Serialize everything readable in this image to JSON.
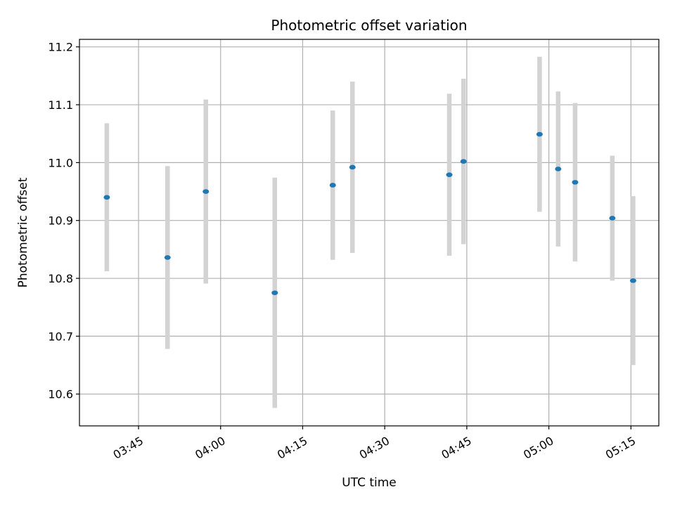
{
  "chart_data": {
    "type": "scatter",
    "title": "Photometric offset variation",
    "xlabel": "UTC time",
    "ylabel": "Photometric offset",
    "grid": true,
    "x_tick_labels": [
      "03:45",
      "04:00",
      "04:15",
      "04:30",
      "04:45",
      "05:00",
      "05:15"
    ],
    "x_tick_minutes": [
      225,
      240,
      255,
      270,
      285,
      300,
      315
    ],
    "xlim_minutes": [
      214.2,
      320.1
    ],
    "y_ticks": [
      10.6,
      10.7,
      10.8,
      10.9,
      11.0,
      11.1,
      11.2
    ],
    "ylim": [
      10.545,
      11.213
    ],
    "errorbar_color": "#d3d3d3",
    "point_color": "#1f77b4",
    "points": [
      {
        "time": "03:39",
        "minutes": 219.2,
        "y": 10.94,
        "err": 0.128
      },
      {
        "time": "03:50",
        "minutes": 230.3,
        "y": 10.836,
        "err": 0.158
      },
      {
        "time": "03:57",
        "minutes": 237.3,
        "y": 10.95,
        "err": 0.159
      },
      {
        "time": "04:10",
        "minutes": 249.9,
        "y": 10.775,
        "err": 0.199
      },
      {
        "time": "04:20",
        "minutes": 260.5,
        "y": 10.961,
        "err": 0.129
      },
      {
        "time": "04:24",
        "minutes": 264.1,
        "y": 10.992,
        "err": 0.148
      },
      {
        "time": "04:42",
        "minutes": 281.8,
        "y": 10.979,
        "err": 0.14
      },
      {
        "time": "04:44",
        "minutes": 284.4,
        "y": 11.002,
        "err": 0.143
      },
      {
        "time": "04:58",
        "minutes": 298.3,
        "y": 11.049,
        "err": 0.134
      },
      {
        "time": "05:02",
        "minutes": 301.7,
        "y": 10.989,
        "err": 0.134
      },
      {
        "time": "05:05",
        "minutes": 304.8,
        "y": 10.966,
        "err": 0.137
      },
      {
        "time": "05:11",
        "minutes": 311.6,
        "y": 10.904,
        "err": 0.108
      },
      {
        "time": "05:15",
        "minutes": 315.4,
        "y": 10.796,
        "err": 0.146
      }
    ]
  }
}
